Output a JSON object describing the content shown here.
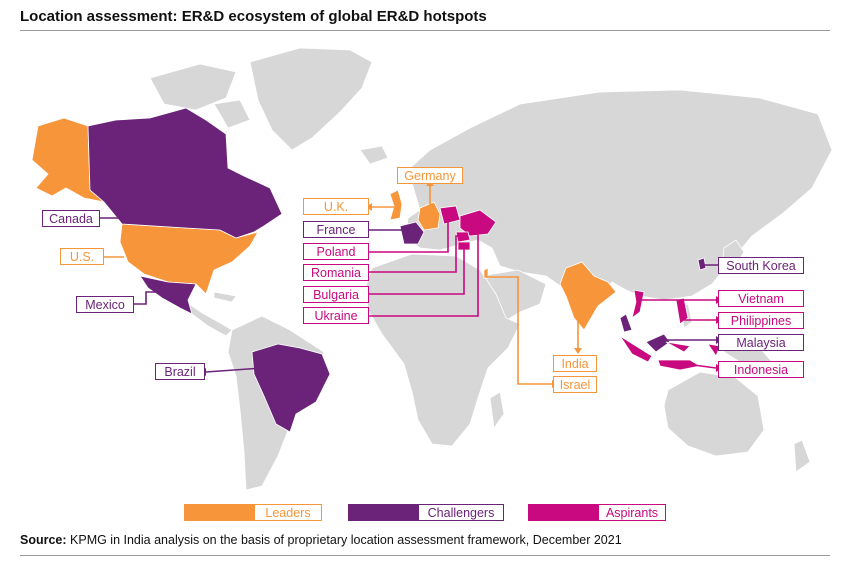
{
  "title": "Location assessment: ER&D ecosystem of global ER&D hotspots",
  "colors": {
    "leaders": "#f7953b",
    "challengers": "#6b2379",
    "aspirants": "#c8097f",
    "land": "#d7d7d7",
    "border": "#ffffff"
  },
  "labels": {
    "germany": "Germany",
    "uk": "U.K.",
    "france": "France",
    "poland": "Poland",
    "romania": "Romania",
    "bulgaria": "Bulgaria",
    "ukraine": "Ukraine",
    "canada": "Canada",
    "us": "U.S.",
    "mexico": "Mexico",
    "brazil": "Brazil",
    "india": "India",
    "israel": "Israel",
    "south_korea": "South Korea",
    "vietnam": "Vietnam",
    "philippines": "Philippines",
    "malaysia": "Malaysia",
    "indonesia": "Indonesia"
  },
  "legend": {
    "leaders": "Leaders",
    "challengers": "Challengers",
    "aspirants": "Aspirants"
  },
  "source": {
    "prefix": "Source:",
    "text": " KPMG in India analysis on the basis of proprietary location assessment framework, December 2021"
  }
}
